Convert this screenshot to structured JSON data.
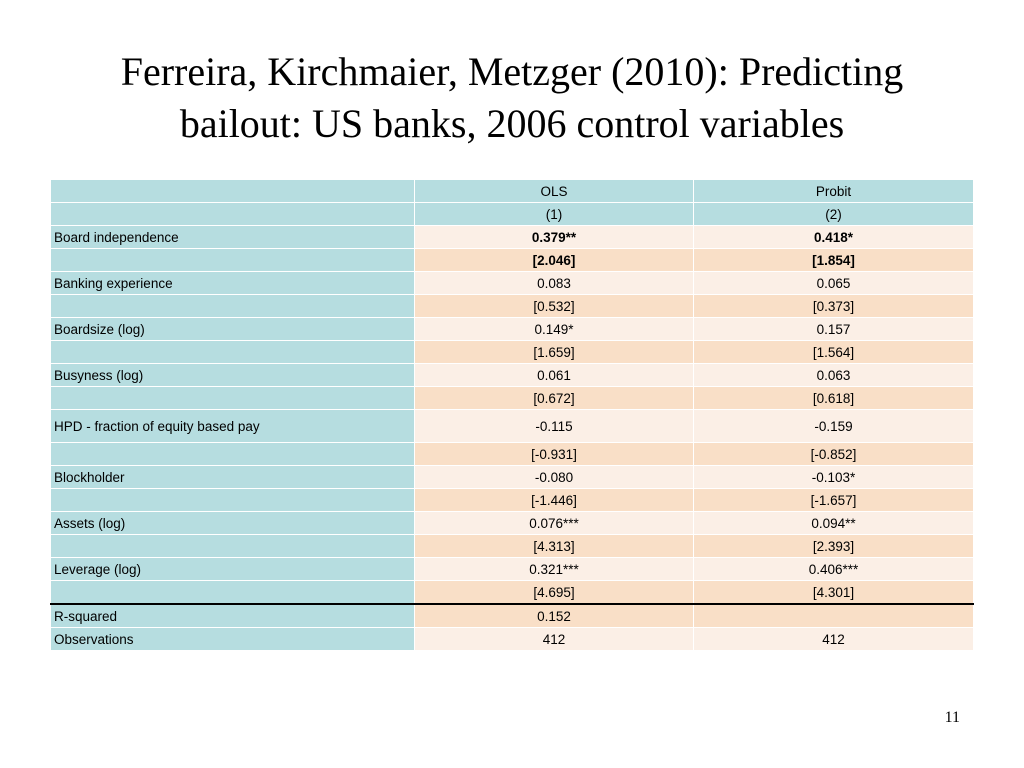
{
  "slide": {
    "title_line1": "Ferreira, Kirchmaier, Metzger (2010): Predicting",
    "title_line2": "bailout: US banks, 2006 control variables",
    "page_number": "11"
  },
  "table": {
    "header": {
      "label": "",
      "col1": "OLS",
      "col2": "Probit"
    },
    "subheader": {
      "label": "",
      "col1": "(1)",
      "col2": "(2)"
    },
    "rows": [
      {
        "label": "Board independence",
        "col1": "0.379**",
        "col2": "0.418*"
      },
      {
        "label": "",
        "col1": "[2.046]",
        "col2": "[1.854]"
      },
      {
        "label": "Banking experience",
        "col1": "0.083",
        "col2": "0.065"
      },
      {
        "label": "",
        "col1": "[0.532]",
        "col2": "[0.373]"
      },
      {
        "label": "Boardsize (log)",
        "col1": "0.149*",
        "col2": "0.157"
      },
      {
        "label": "",
        "col1": "[1.659]",
        "col2": "[1.564]"
      },
      {
        "label": "Busyness (log)",
        "col1": "0.061",
        "col2": "0.063"
      },
      {
        "label": "",
        "col1": "[0.672]",
        "col2": "[0.618]"
      },
      {
        "label": "HPD - fraction of equity based pay",
        "col1": "-0.115",
        "col2": "-0.159"
      },
      {
        "label": "",
        "col1": "[-0.931]",
        "col2": "[-0.852]"
      },
      {
        "label": "Blockholder",
        "col1": "-0.080",
        "col2": "-0.103*"
      },
      {
        "label": "",
        "col1": "[-1.446]",
        "col2": "[-1.657]"
      },
      {
        "label": "Assets (log)",
        "col1": "0.076***",
        "col2": "0.094**"
      },
      {
        "label": "",
        "col1": "[4.313]",
        "col2": "[2.393]"
      },
      {
        "label": "Leverage (log)",
        "col1": "0.321***",
        "col2": "0.406***"
      },
      {
        "label": "",
        "col1": "[4.695]",
        "col2": "[4.301]"
      }
    ],
    "footer": [
      {
        "label": "R-squared",
        "col1": "0.152",
        "col2": ""
      },
      {
        "label": "Observations",
        "col1": "412",
        "col2": "412"
      }
    ]
  }
}
